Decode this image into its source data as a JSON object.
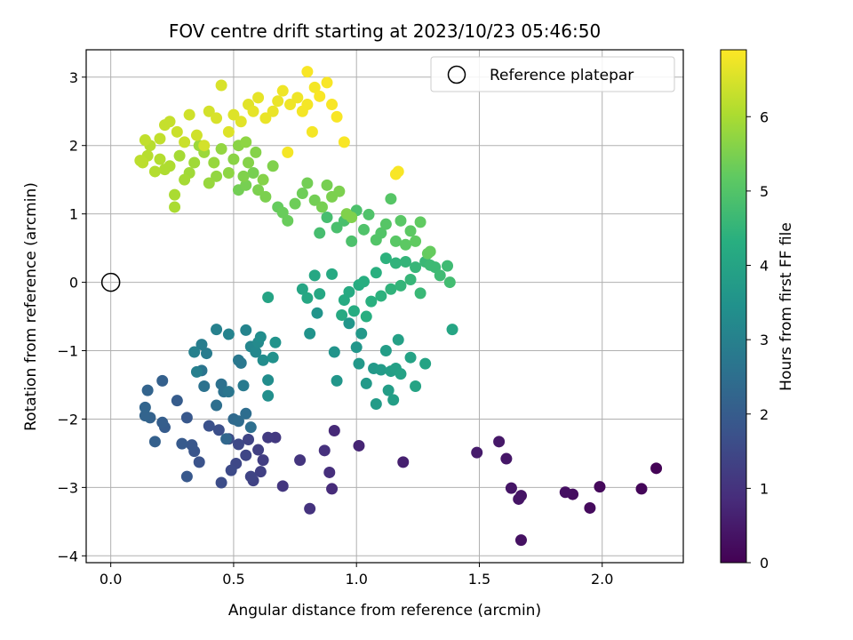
{
  "chart_data": {
    "type": "scatter",
    "title": "FOV centre drift starting at 2023/10/23 05:46:50",
    "xlabel": "Angular distance from reference (arcmin)",
    "ylabel": "Rotation from reference (arcmin)",
    "xlim": [
      -0.1,
      2.33
    ],
    "ylim": [
      -4.1,
      3.4
    ],
    "xticks": [
      0.0,
      0.5,
      1.0,
      1.5,
      2.0
    ],
    "xtick_labels": [
      "0.0",
      "0.5",
      "1.0",
      "1.5",
      "2.0"
    ],
    "yticks": [
      -4,
      -3,
      -2,
      -1,
      0,
      1,
      2,
      3
    ],
    "ytick_labels": [
      "−4",
      "−3",
      "−2",
      "−1",
      "0",
      "1",
      "2",
      "3"
    ],
    "grid": true,
    "legend": {
      "location": "top-right",
      "entries": [
        {
          "label": "Reference platepar",
          "marker": "hollow-circle",
          "color": "#000000"
        }
      ]
    },
    "reference_point": {
      "x": 0.0,
      "y": 0.0
    },
    "colorbar": {
      "label": "Hours from first FF file",
      "colormap": "viridis",
      "range": [
        0,
        6.9
      ],
      "ticks": [
        0,
        1,
        2,
        3,
        4,
        5,
        6
      ],
      "tick_labels": [
        "0",
        "1",
        "2",
        "3",
        "4",
        "5",
        "6"
      ]
    },
    "points": [
      [
        2.22,
        -2.72,
        0.05
      ],
      [
        2.16,
        -3.02,
        0.1
      ],
      [
        1.99,
        -2.99,
        0.15
      ],
      [
        1.95,
        -3.3,
        0.2
      ],
      [
        1.88,
        -3.1,
        0.25
      ],
      [
        1.85,
        -3.07,
        0.3
      ],
      [
        1.67,
        -3.77,
        0.32
      ],
      [
        1.67,
        -3.12,
        0.35
      ],
      [
        1.66,
        -3.17,
        0.38
      ],
      [
        1.63,
        -3.01,
        0.4
      ],
      [
        1.61,
        -2.58,
        0.42
      ],
      [
        1.58,
        -2.33,
        0.45
      ],
      [
        1.49,
        -2.49,
        0.5
      ],
      [
        1.19,
        -2.63,
        0.6
      ],
      [
        1.01,
        -2.39,
        0.7
      ],
      [
        0.91,
        -2.17,
        0.8
      ],
      [
        0.9,
        -3.02,
        0.85
      ],
      [
        0.89,
        -2.78,
        0.9
      ],
      [
        0.87,
        -2.46,
        0.95
      ],
      [
        0.81,
        -3.31,
        1.0
      ],
      [
        0.77,
        -2.6,
        1.05
      ],
      [
        0.7,
        -2.98,
        1.1
      ],
      [
        0.67,
        -2.27,
        1.15
      ],
      [
        0.64,
        -2.27,
        1.2
      ],
      [
        0.62,
        -2.6,
        1.25
      ],
      [
        0.61,
        -2.77,
        1.3
      ],
      [
        0.6,
        -2.45,
        1.3
      ],
      [
        0.58,
        -2.9,
        1.35
      ],
      [
        0.57,
        -2.84,
        1.4
      ],
      [
        0.56,
        -2.3,
        1.4
      ],
      [
        0.55,
        -2.53,
        1.45
      ],
      [
        0.52,
        -2.37,
        1.5
      ],
      [
        0.51,
        -2.65,
        1.5
      ],
      [
        0.49,
        -2.75,
        1.55
      ],
      [
        0.48,
        -2.29,
        1.6
      ],
      [
        0.45,
        -2.93,
        1.6
      ],
      [
        0.44,
        -2.16,
        1.65
      ],
      [
        0.4,
        -2.1,
        1.7
      ],
      [
        0.36,
        -2.63,
        1.75
      ],
      [
        0.34,
        -2.47,
        1.8
      ],
      [
        0.33,
        -2.38,
        1.85
      ],
      [
        0.31,
        -2.84,
        1.9
      ],
      [
        0.31,
        -1.98,
        1.9
      ],
      [
        0.29,
        -2.36,
        1.95
      ],
      [
        0.27,
        -1.73,
        2.0
      ],
      [
        0.22,
        -2.12,
        2.0
      ],
      [
        0.21,
        -2.05,
        2.05
      ],
      [
        0.21,
        -1.44,
        2.1
      ],
      [
        0.18,
        -2.33,
        2.1
      ],
      [
        0.16,
        -1.98,
        2.15
      ],
      [
        0.15,
        -1.58,
        2.2
      ],
      [
        0.14,
        -1.95,
        2.2
      ],
      [
        0.14,
        -1.83,
        2.25
      ],
      [
        0.47,
        -2.29,
        2.3
      ],
      [
        0.5,
        -2.0,
        2.35
      ],
      [
        0.52,
        -2.03,
        2.4
      ],
      [
        0.55,
        -1.92,
        2.45
      ],
      [
        0.57,
        -2.12,
        2.5
      ],
      [
        0.43,
        -1.8,
        2.5
      ],
      [
        0.45,
        -1.49,
        2.55
      ],
      [
        0.46,
        -1.6,
        2.6
      ],
      [
        0.38,
        -1.52,
        2.6
      ],
      [
        0.37,
        -1.29,
        2.65
      ],
      [
        0.48,
        -1.6,
        2.7
      ],
      [
        0.52,
        -1.14,
        2.75
      ],
      [
        0.53,
        -1.18,
        2.75
      ],
      [
        0.54,
        -1.51,
        2.8
      ],
      [
        0.39,
        -1.04,
        2.85
      ],
      [
        0.37,
        -0.91,
        2.9
      ],
      [
        0.35,
        -1.31,
        2.95
      ],
      [
        0.34,
        -1.02,
        3.0
      ],
      [
        0.43,
        -0.69,
        3.0
      ],
      [
        0.48,
        -0.76,
        3.05
      ],
      [
        0.55,
        -0.7,
        3.1
      ],
      [
        0.57,
        -0.94,
        3.15
      ],
      [
        0.59,
        -1.02,
        3.2
      ],
      [
        0.6,
        -0.88,
        3.25
      ],
      [
        0.62,
        -1.14,
        3.3
      ],
      [
        0.61,
        -0.8,
        3.35
      ],
      [
        0.64,
        -1.43,
        3.35
      ],
      [
        0.64,
        -1.66,
        3.4
      ],
      [
        0.66,
        -1.1,
        3.45
      ],
      [
        0.67,
        -0.88,
        3.5
      ],
      [
        0.81,
        -0.75,
        3.5
      ],
      [
        0.84,
        -0.45,
        3.55
      ],
      [
        0.91,
        -1.02,
        3.55
      ],
      [
        0.92,
        -1.44,
        3.6
      ],
      [
        0.97,
        -0.6,
        3.6
      ],
      [
        1.0,
        -0.95,
        3.6
      ],
      [
        1.01,
        -1.19,
        3.65
      ],
      [
        1.02,
        -0.75,
        3.65
      ],
      [
        1.04,
        -1.48,
        3.7
      ],
      [
        1.07,
        -1.26,
        3.7
      ],
      [
        1.08,
        -1.78,
        3.75
      ],
      [
        1.1,
        -1.28,
        3.75
      ],
      [
        1.12,
        -1.0,
        3.8
      ],
      [
        1.13,
        -1.58,
        3.8
      ],
      [
        1.14,
        -1.3,
        3.85
      ],
      [
        1.15,
        -1.72,
        3.85
      ],
      [
        1.16,
        -1.26,
        3.9
      ],
      [
        1.17,
        -0.84,
        3.9
      ],
      [
        1.18,
        -1.34,
        3.95
      ],
      [
        1.22,
        -1.1,
        3.95
      ],
      [
        1.24,
        -1.52,
        4.0
      ],
      [
        1.28,
        -1.19,
        4.0
      ],
      [
        1.39,
        -0.69,
        4.05
      ],
      [
        0.78,
        -0.1,
        4.05
      ],
      [
        0.8,
        -0.23,
        4.1
      ],
      [
        0.83,
        0.1,
        4.1
      ],
      [
        0.85,
        -0.17,
        4.1
      ],
      [
        0.9,
        0.12,
        4.15
      ],
      [
        0.94,
        -0.48,
        4.15
      ],
      [
        0.95,
        -0.26,
        4.2
      ],
      [
        0.97,
        -0.14,
        4.2
      ],
      [
        0.99,
        -0.42,
        4.25
      ],
      [
        1.01,
        -0.04,
        4.25
      ],
      [
        1.03,
        0.01,
        4.3
      ],
      [
        1.04,
        -0.5,
        4.3
      ],
      [
        1.06,
        -0.28,
        4.35
      ],
      [
        1.08,
        0.14,
        4.35
      ],
      [
        1.1,
        -0.2,
        4.4
      ],
      [
        1.12,
        0.35,
        4.4
      ],
      [
        1.14,
        -0.1,
        4.45
      ],
      [
        1.16,
        0.28,
        4.45
      ],
      [
        1.18,
        -0.05,
        4.5
      ],
      [
        1.2,
        0.3,
        4.5
      ],
      [
        1.22,
        0.04,
        4.55
      ],
      [
        1.24,
        0.22,
        4.55
      ],
      [
        1.26,
        -0.16,
        4.6
      ],
      [
        1.28,
        0.3,
        4.6
      ],
      [
        1.3,
        0.25,
        4.65
      ],
      [
        1.32,
        0.22,
        4.65
      ],
      [
        1.34,
        0.1,
        4.7
      ],
      [
        1.37,
        0.24,
        4.7
      ],
      [
        1.38,
        0.0,
        4.75
      ],
      [
        0.64,
        -0.22,
        4.0
      ],
      [
        0.85,
        0.72,
        4.8
      ],
      [
        0.88,
        0.95,
        4.8
      ],
      [
        0.92,
        0.8,
        4.85
      ],
      [
        0.95,
        0.9,
        4.85
      ],
      [
        0.98,
        0.6,
        4.9
      ],
      [
        1.0,
        1.05,
        4.9
      ],
      [
        1.03,
        0.77,
        4.95
      ],
      [
        1.05,
        0.99,
        4.95
      ],
      [
        1.08,
        0.62,
        5.0
      ],
      [
        1.1,
        0.72,
        5.0
      ],
      [
        1.12,
        0.85,
        5.05
      ],
      [
        1.14,
        1.22,
        5.05
      ],
      [
        1.16,
        0.6,
        5.1
      ],
      [
        1.18,
        0.9,
        5.1
      ],
      [
        1.2,
        0.55,
        5.15
      ],
      [
        1.22,
        0.75,
        5.15
      ],
      [
        1.24,
        0.6,
        5.2
      ],
      [
        1.26,
        0.88,
        5.2
      ],
      [
        1.29,
        0.42,
        5.25
      ],
      [
        1.3,
        0.45,
        5.25
      ],
      [
        0.68,
        1.1,
        5.25
      ],
      [
        0.7,
        1.02,
        5.3
      ],
      [
        0.72,
        0.9,
        5.3
      ],
      [
        0.75,
        1.15,
        5.35
      ],
      [
        0.78,
        1.3,
        5.35
      ],
      [
        0.8,
        1.45,
        5.4
      ],
      [
        0.83,
        1.2,
        5.4
      ],
      [
        0.86,
        1.1,
        5.45
      ],
      [
        0.88,
        1.42,
        5.45
      ],
      [
        0.9,
        1.25,
        5.5
      ],
      [
        0.93,
        1.33,
        5.5
      ],
      [
        0.96,
        1.0,
        5.55
      ],
      [
        0.98,
        0.95,
        5.55
      ],
      [
        0.52,
        1.35,
        5.4
      ],
      [
        0.55,
        1.42,
        5.45
      ],
      [
        0.58,
        1.6,
        5.45
      ],
      [
        0.6,
        1.35,
        5.5
      ],
      [
        0.63,
        1.25,
        5.5
      ],
      [
        0.66,
        1.7,
        5.55
      ],
      [
        0.54,
        1.55,
        5.55
      ],
      [
        0.56,
        1.75,
        5.6
      ],
      [
        0.59,
        1.9,
        5.6
      ],
      [
        0.62,
        1.5,
        5.6
      ],
      [
        0.5,
        1.8,
        5.65
      ],
      [
        0.52,
        2.0,
        5.65
      ],
      [
        0.55,
        2.05,
        5.7
      ],
      [
        0.48,
        1.6,
        5.7
      ],
      [
        0.45,
        1.95,
        5.75
      ],
      [
        0.43,
        1.55,
        5.75
      ],
      [
        0.4,
        1.45,
        5.8
      ],
      [
        0.42,
        1.75,
        5.8
      ],
      [
        0.38,
        1.9,
        5.85
      ],
      [
        0.36,
        2.0,
        5.85
      ],
      [
        0.34,
        1.75,
        5.9
      ],
      [
        0.32,
        1.6,
        5.9
      ],
      [
        0.3,
        1.5,
        5.95
      ],
      [
        0.28,
        1.85,
        5.95
      ],
      [
        0.26,
        1.28,
        6.0
      ],
      [
        0.26,
        1.1,
        6.0
      ],
      [
        0.24,
        1.7,
        6.05
      ],
      [
        0.22,
        1.65,
        6.05
      ],
      [
        0.2,
        1.8,
        6.1
      ],
      [
        0.18,
        1.62,
        6.1
      ],
      [
        0.16,
        2.0,
        6.15
      ],
      [
        0.15,
        1.85,
        6.15
      ],
      [
        0.13,
        1.75,
        6.2
      ],
      [
        0.12,
        1.78,
        6.2
      ],
      [
        0.14,
        2.08,
        6.25
      ],
      [
        0.2,
        2.1,
        6.25
      ],
      [
        0.22,
        2.3,
        6.3
      ],
      [
        0.24,
        2.35,
        6.3
      ],
      [
        0.27,
        2.2,
        6.35
      ],
      [
        0.3,
        2.05,
        6.35
      ],
      [
        0.32,
        2.45,
        6.4
      ],
      [
        0.35,
        2.15,
        6.4
      ],
      [
        0.38,
        2.0,
        6.45
      ],
      [
        0.4,
        2.5,
        6.45
      ],
      [
        0.43,
        2.4,
        6.5
      ],
      [
        0.45,
        2.88,
        6.5
      ],
      [
        0.48,
        2.2,
        6.55
      ],
      [
        0.5,
        2.45,
        6.55
      ],
      [
        0.53,
        2.35,
        6.6
      ],
      [
        0.56,
        2.6,
        6.6
      ],
      [
        0.58,
        2.5,
        6.65
      ],
      [
        0.6,
        2.7,
        6.65
      ],
      [
        0.63,
        2.4,
        6.7
      ],
      [
        0.66,
        2.5,
        6.7
      ],
      [
        0.68,
        2.65,
        6.7
      ],
      [
        0.7,
        2.8,
        6.75
      ],
      [
        0.73,
        2.6,
        6.75
      ],
      [
        0.76,
        2.7,
        6.75
      ],
      [
        0.78,
        2.5,
        6.8
      ],
      [
        0.8,
        2.6,
        6.8
      ],
      [
        0.83,
        2.85,
        6.8
      ],
      [
        0.85,
        2.72,
        6.85
      ],
      [
        0.88,
        2.92,
        6.85
      ],
      [
        0.9,
        2.6,
        6.85
      ],
      [
        0.92,
        2.42,
        6.85
      ],
      [
        0.8,
        3.08,
        6.85
      ],
      [
        0.72,
        1.9,
        6.8
      ],
      [
        0.82,
        2.2,
        6.8
      ],
      [
        0.95,
        2.05,
        6.85
      ],
      [
        1.16,
        1.58,
        6.85
      ],
      [
        1.17,
        1.62,
        6.85
      ]
    ]
  }
}
